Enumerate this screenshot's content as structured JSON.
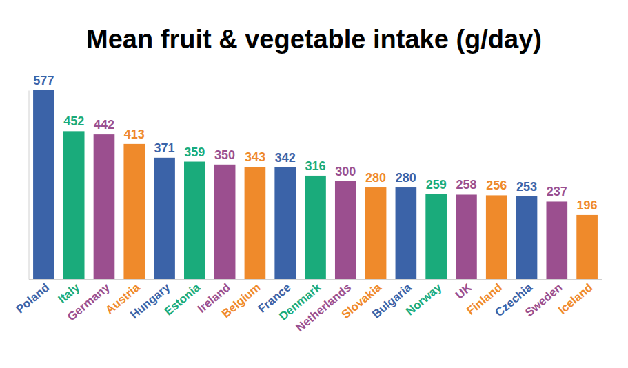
{
  "chart_data": {
    "type": "bar",
    "title": "Mean fruit & vegetable intake (g/day)",
    "categories": [
      "Poland",
      "Italy",
      "Germany",
      "Austria",
      "Hungary",
      "Estonia",
      "Ireland",
      "Belgium",
      "France",
      "Denmark",
      "Netherlands",
      "Slovakia",
      "Bulgaria",
      "Norway",
      "UK",
      "Finland",
      "Czechia",
      "Sweden",
      "Iceland"
    ],
    "values": [
      577,
      452,
      442,
      413,
      371,
      359,
      350,
      343,
      342,
      316,
      300,
      280,
      280,
      259,
      258,
      256,
      253,
      237,
      196
    ],
    "colors": [
      "#3b63a8",
      "#1aab7b",
      "#9b4f8f",
      "#ef8a2b",
      "#3b63a8",
      "#1aab7b",
      "#9b4f8f",
      "#ef8a2b",
      "#3b63a8",
      "#1aab7b",
      "#9b4f8f",
      "#ef8a2b",
      "#3b63a8",
      "#1aab7b",
      "#9b4f8f",
      "#ef8a2b",
      "#3b63a8",
      "#9b4f8f",
      "#ef8a2b"
    ],
    "ylim": [
      0,
      577
    ],
    "data_labels": true,
    "tick_labels": "x",
    "grid": false
  }
}
